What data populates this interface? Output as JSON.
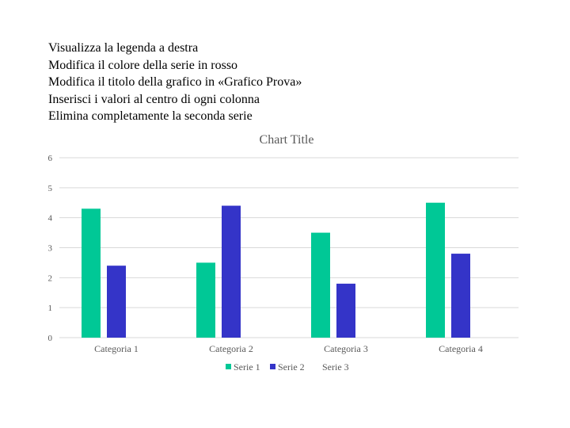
{
  "instructions": [
    "Visualizza la legenda a destra",
    "Modifica il colore della serie in rosso",
    "Modifica il titolo della grafico in «Grafico Prova»",
    "Inserisci i valori al centro di ogni colonna",
    "Elimina completamente la seconda serie"
  ],
  "chart_data": {
    "type": "bar",
    "title": "Chart Title",
    "categories": [
      "Categoria 1",
      "Categoria 2",
      "Categoria 3",
      "Categoria 4"
    ],
    "series": [
      {
        "name": "Serie 1",
        "values": [
          4.3,
          2.5,
          3.5,
          4.5
        ],
        "color": "#00c896"
      },
      {
        "name": "Serie 2",
        "values": [
          2.4,
          4.4,
          1.8,
          2.8
        ],
        "color": "#3434c8"
      },
      {
        "name": "Serie 3",
        "values": [
          null,
          null,
          null,
          null
        ],
        "color": "#ffffff"
      }
    ],
    "ylim": [
      0,
      6
    ],
    "yticks": [
      "0",
      "1",
      "2",
      "3",
      "4",
      "5",
      "6"
    ],
    "grid": true,
    "legend_position": "bottom"
  }
}
